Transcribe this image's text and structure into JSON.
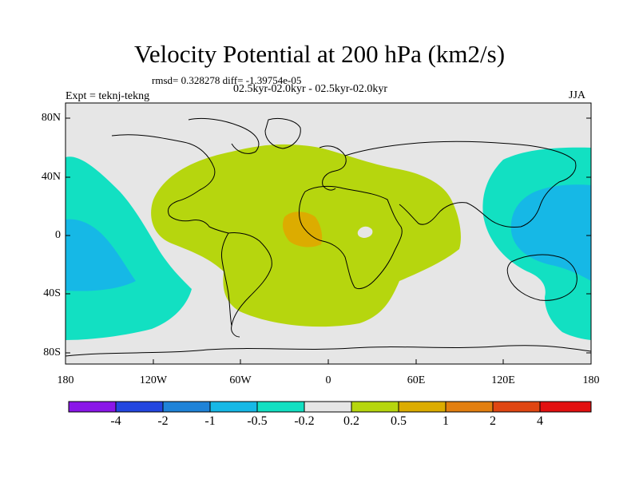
{
  "title": "Velocity Potential at 200 hPa (km2/s)",
  "stats": "rmsd= 0.328278 diff= -1.39754e-05",
  "experiment": "Expt = teknj-tekng",
  "period": "02.5kyr-02.0kyr - 02.5kyr-02.0kyr",
  "season": "JJA",
  "axes": {
    "y_ticks": [
      "80N",
      "40N",
      "0",
      "40S",
      "80S"
    ],
    "x_ticks": [
      "180",
      "120W",
      "60W",
      "0",
      "60E",
      "120E",
      "180"
    ],
    "lat_range": [
      -90,
      90
    ],
    "lon_range": [
      -180,
      180
    ]
  },
  "colorbar": {
    "labels": [
      "-4",
      "-2",
      "-1",
      "-0.5",
      "-0.2",
      "0.2",
      "0.5",
      "1",
      "2",
      "4"
    ],
    "colors": [
      "#8a16e8",
      "#2346e0",
      "#1f83d8",
      "#16b8e6",
      "#12e0c2",
      "#e6e6e6",
      "#b6d60e",
      "#dcac00",
      "#e27f10",
      "#e04612",
      "#e21010"
    ]
  },
  "colors": {
    "ocean_background": "#e6e6e6",
    "positive_weak": "#b6d60e",
    "positive_mid": "#dcac00",
    "negative_weak": "#12e0c2",
    "negative_mid": "#16b8e6"
  }
}
